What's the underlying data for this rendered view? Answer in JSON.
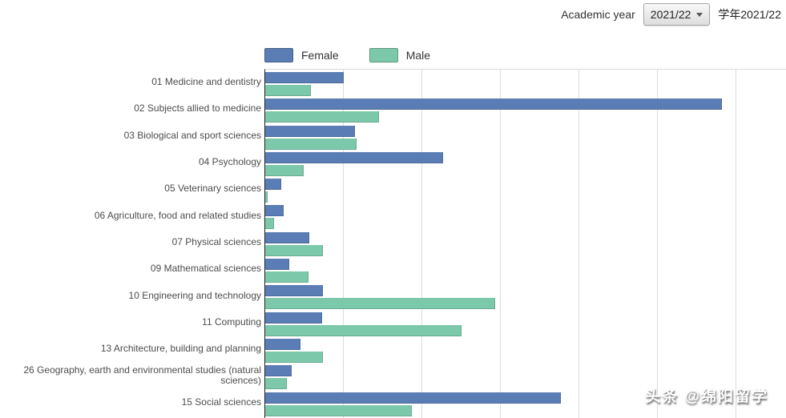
{
  "header": {
    "academic_year_label": "Academic year",
    "academic_year_value": "2021/22",
    "academic_year_label_cn": "学年2021/22"
  },
  "legend": {
    "female_label": "Female",
    "male_label": "Male"
  },
  "watermark": "头条 @绵阳留学",
  "colors": {
    "female": "#5b7db5",
    "male": "#7cc8aa",
    "axis": "#222222",
    "gridline": "#dcdcdc"
  },
  "chart_data": {
    "type": "bar",
    "orientation": "horizontal",
    "title": "",
    "xlabel": "",
    "ylabel": "",
    "legend_position": "top",
    "grid": true,
    "categories": [
      "01 Medicine and dentistry",
      "02 Subjects allied to medicine",
      "03 Biological and sport sciences",
      "04 Psychology",
      "05 Veterinary sciences",
      "06 Agriculture, food and related studies",
      "07 Physical sciences",
      "09 Mathematical sciences",
      "10 Engineering and technology",
      "11 Computing",
      "13 Architecture, building and planning",
      "26 Geography, earth and environmental studies (natural sciences)",
      "15 Social sciences"
    ],
    "series": [
      {
        "name": "Female",
        "color": "#5b7db5",
        "values": [
          49800,
          290800,
          57000,
          113100,
          10200,
          11700,
          28100,
          15300,
          36700,
          36200,
          22400,
          16800,
          188300
        ]
      },
      {
        "name": "Male",
        "color": "#7cc8aa",
        "values": [
          28900,
          72300,
          58200,
          24600,
          1500,
          5600,
          36700,
          27600,
          146400,
          125000,
          36700,
          13800,
          93400
        ]
      }
    ],
    "x_axis": {
      "min": 0,
      "max": 332000,
      "gridline_interval": 50000,
      "tick_labels_visible": false
    }
  }
}
